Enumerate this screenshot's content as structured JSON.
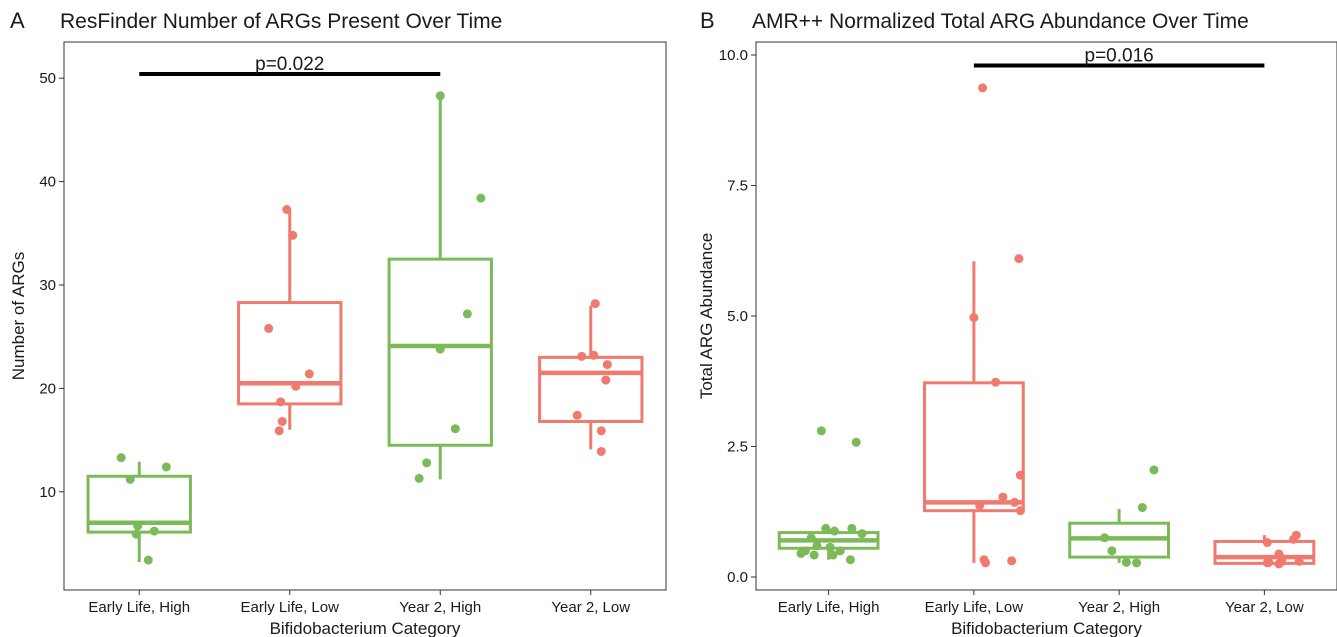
{
  "colors": {
    "high": "#7CBA59",
    "low": "#F07A6E",
    "axis": "#333333",
    "bracket": "#000000"
  },
  "chart_data": [
    {
      "type": "box",
      "panel_label": "A",
      "title": "ResFinder Number of ARGs Present Over Time",
      "xlabel": "Bifidobacterium Category",
      "ylabel": "Number of ARGs",
      "ylim": [
        0.5,
        53.5
      ],
      "yticks": [
        10,
        20,
        30,
        40,
        50
      ],
      "grid": false,
      "categories": [
        "Early Life, High",
        "Early Life, Low",
        "Year 2, High",
        "Year 2, Low"
      ],
      "groups": [
        "high",
        "low",
        "high",
        "low"
      ],
      "boxes": [
        {
          "min": 3.2,
          "q1": 6.1,
          "median": 7.0,
          "q3": 11.5,
          "max": 12.9
        },
        {
          "min": 16.0,
          "q1": 18.5,
          "median": 20.5,
          "q3": 28.3,
          "max": 37.2
        },
        {
          "min": 11.2,
          "q1": 14.5,
          "median": 24.1,
          "q3": 32.5,
          "max": 48.3
        },
        {
          "min": 14.1,
          "q1": 16.8,
          "median": 21.5,
          "q3": 23.0,
          "max": 28.0
        }
      ],
      "points": [
        [
          [
            -0.12,
            13.3
          ],
          [
            0.18,
            12.4
          ],
          [
            -0.06,
            11.2
          ],
          [
            -0.01,
            6.7
          ],
          [
            0.1,
            6.2
          ],
          [
            -0.02,
            5.9
          ],
          [
            0.06,
            3.4
          ]
        ],
        [
          [
            -0.02,
            37.3
          ],
          [
            0.02,
            34.8
          ],
          [
            -0.14,
            25.8
          ],
          [
            0.13,
            21.4
          ],
          [
            0.04,
            20.2
          ],
          [
            -0.06,
            18.7
          ],
          [
            -0.05,
            16.8
          ],
          [
            -0.07,
            15.9
          ]
        ],
        [
          [
            0.0,
            48.3
          ],
          [
            0.27,
            38.4
          ],
          [
            0.18,
            27.2
          ],
          [
            0.0,
            23.8
          ],
          [
            0.1,
            16.1
          ],
          [
            -0.09,
            12.8
          ],
          [
            -0.14,
            11.3
          ]
        ],
        [
          [
            0.03,
            28.2
          ],
          [
            -0.06,
            23.1
          ],
          [
            0.02,
            23.2
          ],
          [
            0.11,
            22.3
          ],
          [
            0.1,
            20.8
          ],
          [
            -0.09,
            17.4
          ],
          [
            0.07,
            15.9
          ],
          [
            0.07,
            13.9
          ]
        ]
      ],
      "annotation": {
        "text": "p=0.022",
        "from": 0,
        "to": 2,
        "y": 50.4
      }
    },
    {
      "type": "box",
      "panel_label": "B",
      "title": "AMR++ Normalized Total ARG Abundance Over Time",
      "xlabel": "Bifidobacterium Category",
      "ylabel": "Total ARG Abundance",
      "ylim": [
        -0.25,
        10.25
      ],
      "yticks": [
        0.0,
        2.5,
        5.0,
        7.5,
        10.0
      ],
      "yticklabels": [
        "0.0",
        "2.5",
        "5.0",
        "7.5",
        "10.0"
      ],
      "grid": false,
      "categories": [
        "Early Life, High",
        "Early Life, Low",
        "Year 2, High",
        "Year 2, Low"
      ],
      "groups": [
        "high",
        "low",
        "high",
        "low"
      ],
      "boxes": [
        {
          "min": 0.33,
          "q1": 0.55,
          "median": 0.7,
          "q3": 0.85,
          "max": 0.95
        },
        {
          "min": 0.27,
          "q1": 1.27,
          "median": 1.43,
          "q3": 3.72,
          "max": 6.05
        },
        {
          "min": 0.27,
          "q1": 0.38,
          "median": 0.74,
          "q3": 1.03,
          "max": 1.3
        },
        {
          "min": 0.25,
          "q1": 0.26,
          "median": 0.38,
          "q3": 0.68,
          "max": 0.8
        }
      ],
      "points": [
        [
          [
            -0.05,
            2.8
          ],
          [
            0.19,
            2.58
          ],
          [
            -0.02,
            0.93
          ],
          [
            0.16,
            0.93
          ],
          [
            0.04,
            0.88
          ],
          [
            0.23,
            0.83
          ],
          [
            -0.12,
            0.75
          ],
          [
            -0.08,
            0.6
          ],
          [
            0.01,
            0.57
          ],
          [
            -0.16,
            0.5
          ],
          [
            0.08,
            0.5
          ],
          [
            -0.19,
            0.45
          ],
          [
            -0.1,
            0.42
          ],
          [
            0.03,
            0.42
          ],
          [
            0.15,
            0.33
          ]
        ],
        [
          [
            0.06,
            9.37
          ],
          [
            0.31,
            6.1
          ],
          [
            0.0,
            4.97
          ],
          [
            0.15,
            3.73
          ],
          [
            0.32,
            1.95
          ],
          [
            0.2,
            1.53
          ],
          [
            0.28,
            1.43
          ],
          [
            0.32,
            1.27
          ],
          [
            0.04,
            1.37
          ],
          [
            0.07,
            0.33
          ],
          [
            0.08,
            0.27
          ],
          [
            0.26,
            0.31
          ]
        ],
        [
          [
            0.24,
            2.05
          ],
          [
            0.16,
            1.33
          ],
          [
            -0.1,
            0.75
          ],
          [
            -0.05,
            0.5
          ],
          [
            0.05,
            0.28
          ],
          [
            0.12,
            0.27
          ]
        ],
        [
          [
            0.22,
            0.8
          ],
          [
            0.2,
            0.72
          ],
          [
            0.02,
            0.66
          ],
          [
            0.1,
            0.44
          ],
          [
            0.12,
            0.36
          ],
          [
            0.12,
            0.3
          ],
          [
            0.24,
            0.3
          ],
          [
            0.02,
            0.27
          ],
          [
            0.03,
            0.28
          ],
          [
            0.1,
            0.25
          ]
        ]
      ],
      "annotation": {
        "text": "p=0.016",
        "from": 1,
        "to": 3,
        "y": 9.8
      }
    }
  ]
}
